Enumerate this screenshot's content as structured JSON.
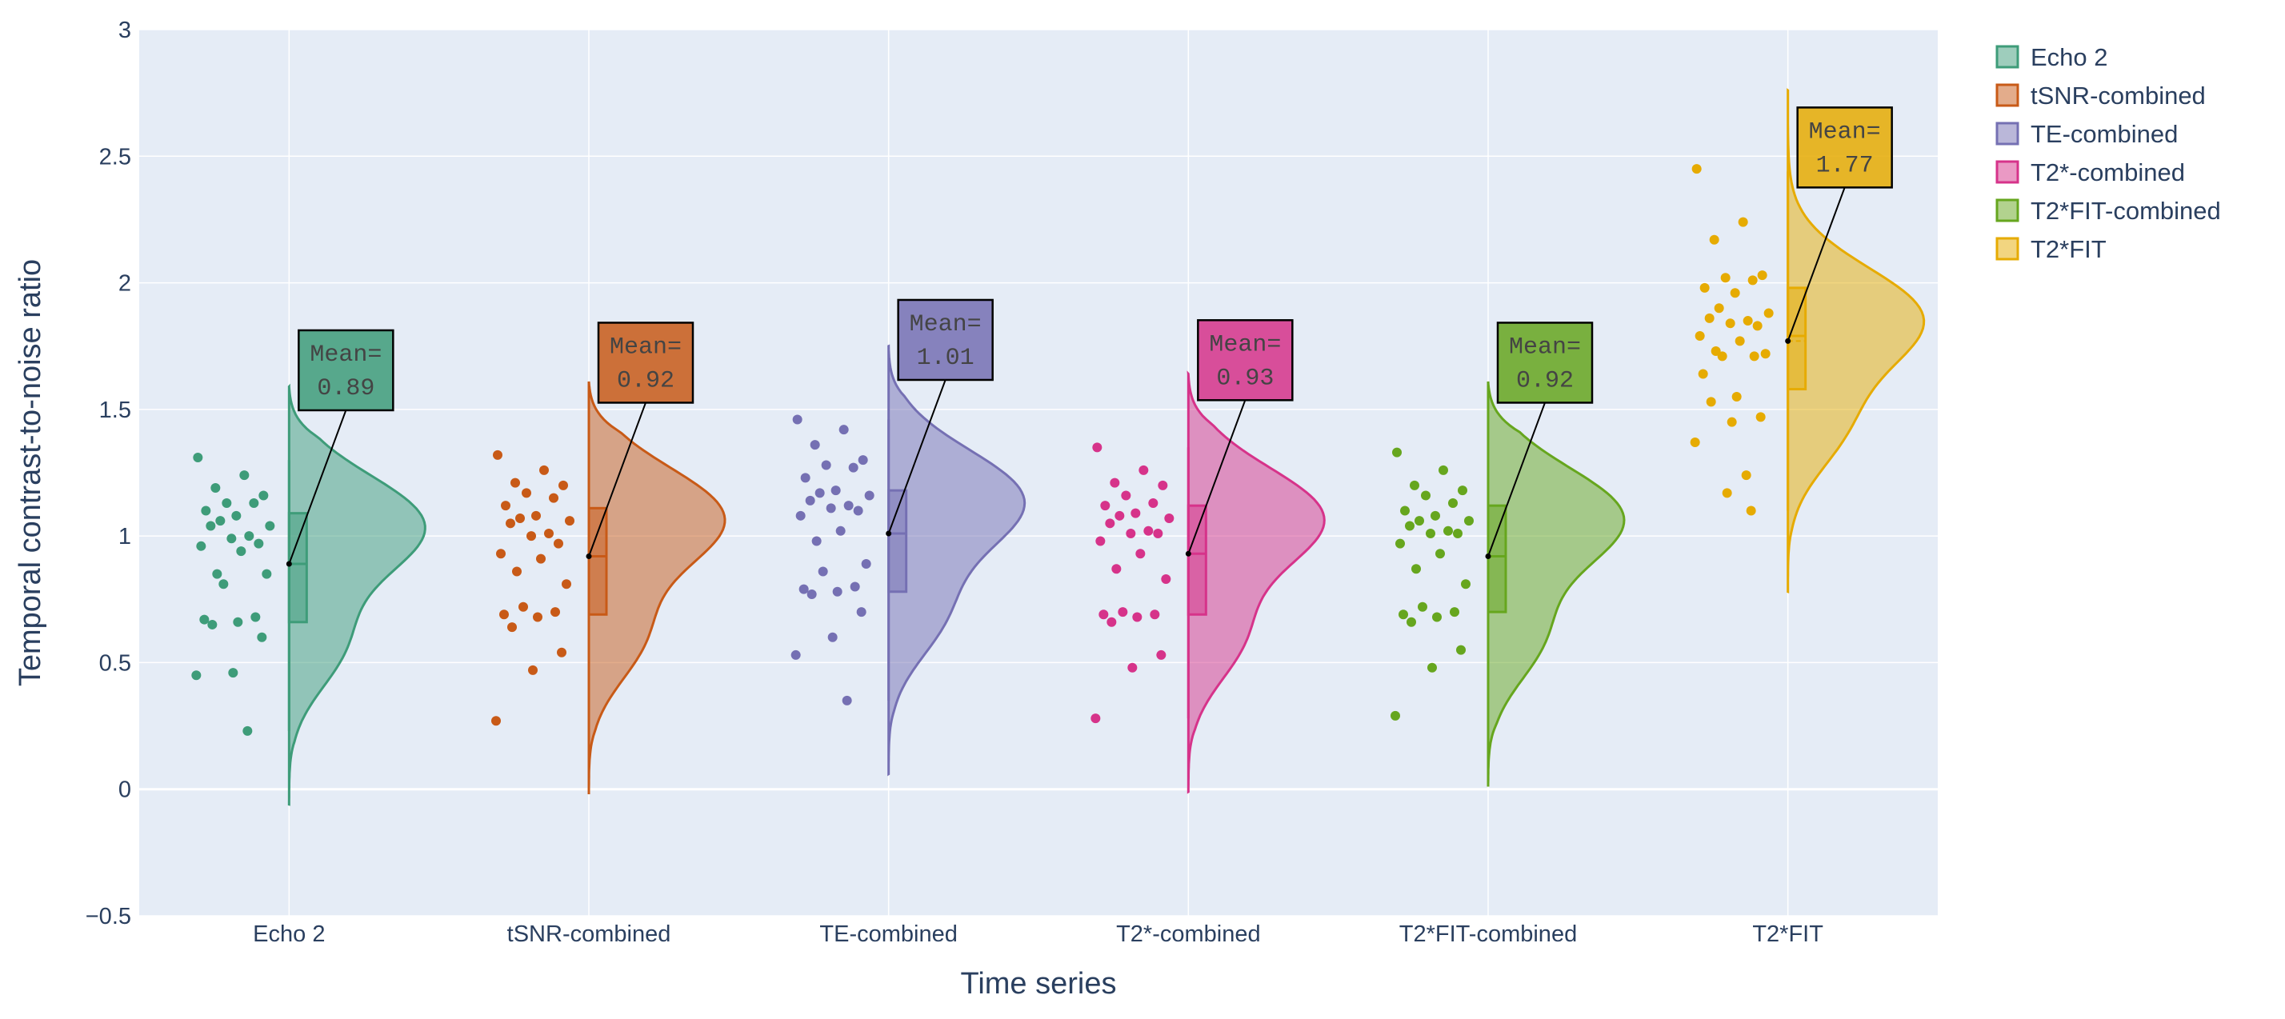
{
  "chart_data": {
    "type": "raincloud",
    "xlabel": "Time series",
    "ylabel": "Temporal contrast-to-noise ratio",
    "ylim": [
      -0.5,
      3
    ],
    "yticks": [
      -0.5,
      0,
      0.5,
      1,
      1.5,
      2,
      2.5,
      3
    ],
    "ytick_labels": [
      "−0.5",
      "0",
      "0.5",
      "1",
      "1.5",
      "2",
      "2.5",
      "3"
    ],
    "grid": true,
    "legend_position": "top-right",
    "plot_background": "#e5ecf6",
    "categories": [
      "Echo 2",
      "tSNR-combined",
      "TE-combined",
      "T2*-combined",
      "T2*FIT-combined",
      "T2*FIT"
    ],
    "series": [
      {
        "name": "Echo 2",
        "color": "#3e9c79",
        "annotation": [
          "Mean=",
          "0.89"
        ],
        "mean": 0.89,
        "box": {
          "q1": 0.66,
          "median": 0.89,
          "q3": 1.09,
          "lower_fence": 0.23,
          "upper_fence": 1.3
        },
        "violin": {
          "min": -0.06,
          "max": 1.59,
          "mode": 1.04,
          "shoulder": 0.57
        },
        "points": [
          1.31,
          1.24,
          1.19,
          1.16,
          1.13,
          1.13,
          1.1,
          1.08,
          1.06,
          1.04,
          1.04,
          1.0,
          0.99,
          0.97,
          0.96,
          0.94,
          0.85,
          0.85,
          0.81,
          0.68,
          0.67,
          0.66,
          0.65,
          0.6,
          0.46,
          0.45,
          0.23
        ]
      },
      {
        "name": "tSNR-combined",
        "color": "#c85a17",
        "annotation": [
          "Mean=",
          "0.92"
        ],
        "mean": 0.92,
        "box": {
          "q1": 0.69,
          "median": 0.92,
          "q3": 1.11,
          "lower_fence": 0.27,
          "upper_fence": 1.32
        },
        "violin": {
          "min": -0.02,
          "max": 1.61,
          "mode": 1.07,
          "shoulder": 0.6
        },
        "points": [
          1.32,
          1.26,
          1.21,
          1.2,
          1.17,
          1.15,
          1.12,
          1.08,
          1.07,
          1.06,
          1.05,
          1.01,
          1.0,
          0.97,
          0.93,
          0.91,
          0.86,
          0.81,
          0.72,
          0.7,
          0.69,
          0.68,
          0.64,
          0.54,
          0.47,
          0.27
        ]
      },
      {
        "name": "TE-combined",
        "color": "#7570b3",
        "annotation": [
          "Mean=",
          "1.01"
        ],
        "mean": 1.01,
        "box": {
          "q1": 0.78,
          "median": 1.01,
          "q3": 1.18,
          "lower_fence": 0.35,
          "upper_fence": 1.46
        },
        "violin": {
          "min": 0.06,
          "max": 1.75,
          "mode": 1.14,
          "shoulder": 0.69
        },
        "points": [
          1.46,
          1.42,
          1.36,
          1.3,
          1.28,
          1.27,
          1.23,
          1.18,
          1.17,
          1.16,
          1.14,
          1.12,
          1.11,
          1.1,
          1.08,
          1.02,
          0.98,
          0.89,
          0.86,
          0.8,
          0.79,
          0.78,
          0.77,
          0.7,
          0.6,
          0.53,
          0.35
        ]
      },
      {
        "name": "T2*-combined",
        "color": "#d6338a",
        "annotation": [
          "Mean=",
          "0.93"
        ],
        "mean": 0.93,
        "box": {
          "q1": 0.69,
          "median": 0.93,
          "q3": 1.12,
          "lower_fence": 0.28,
          "upper_fence": 1.35
        },
        "violin": {
          "min": -0.01,
          "max": 1.64,
          "mode": 1.07,
          "shoulder": 0.6
        },
        "points": [
          1.35,
          1.26,
          1.21,
          1.2,
          1.16,
          1.13,
          1.12,
          1.09,
          1.08,
          1.07,
          1.05,
          1.02,
          1.01,
          1.01,
          0.98,
          0.93,
          0.87,
          0.83,
          0.7,
          0.69,
          0.69,
          0.68,
          0.66,
          0.53,
          0.48,
          0.28
        ]
      },
      {
        "name": "T2*FIT-combined",
        "color": "#66a61e",
        "annotation": [
          "Mean=",
          "0.92"
        ],
        "mean": 0.92,
        "box": {
          "q1": 0.7,
          "median": 0.92,
          "q3": 1.12,
          "lower_fence": 0.29,
          "upper_fence": 1.33
        },
        "violin": {
          "min": 0.01,
          "max": 1.61,
          "mode": 1.07,
          "shoulder": 0.6
        },
        "points": [
          1.33,
          1.26,
          1.2,
          1.18,
          1.16,
          1.13,
          1.1,
          1.08,
          1.06,
          1.06,
          1.04,
          1.02,
          1.01,
          1.01,
          0.97,
          0.93,
          0.87,
          0.81,
          0.72,
          0.7,
          0.69,
          0.68,
          0.66,
          0.55,
          0.48,
          0.29
        ]
      },
      {
        "name": "T2*FIT",
        "color": "#e6ab02",
        "annotation": [
          "Mean=",
          "1.77"
        ],
        "mean": 1.77,
        "box": {
          "q1": 1.58,
          "median": 1.79,
          "q3": 1.98,
          "lower_fence": 1.1,
          "upper_fence": 2.44
        },
        "violin": {
          "min": 0.78,
          "max": 2.76,
          "mode": 1.86,
          "shoulder": 1.43
        },
        "points": [
          2.45,
          2.24,
          2.17,
          2.03,
          2.02,
          2.01,
          1.98,
          1.96,
          1.9,
          1.88,
          1.86,
          1.85,
          1.84,
          1.83,
          1.79,
          1.77,
          1.73,
          1.72,
          1.71,
          1.71,
          1.64,
          1.55,
          1.53,
          1.47,
          1.45,
          1.37,
          1.24,
          1.17,
          1.1
        ]
      }
    ]
  }
}
